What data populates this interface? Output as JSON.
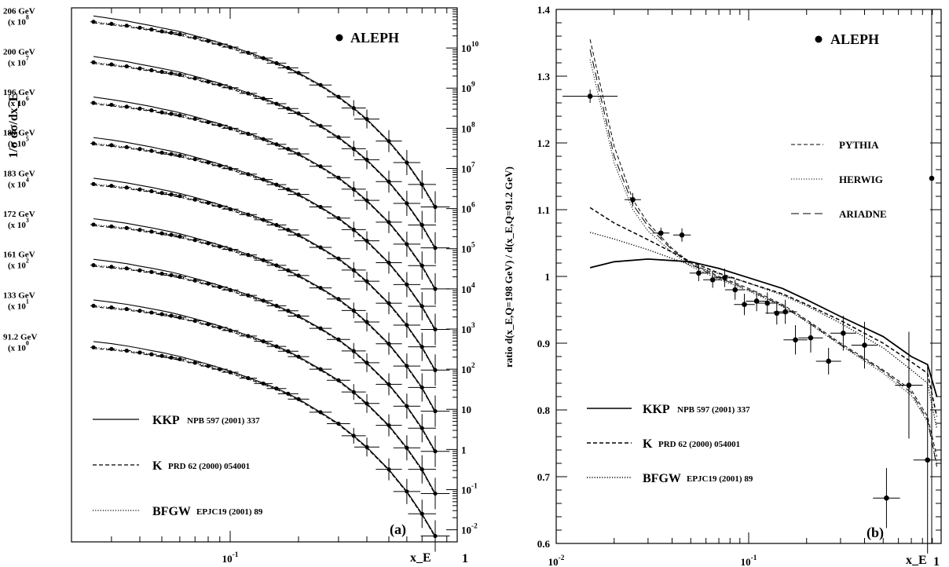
{
  "figure": {
    "panel_a": {
      "label": "(a)",
      "experiment": "ALEPH",
      "ylabel": "1/σ dσ/dx_E",
      "xlabel": "x_E",
      "x_ticks": [
        "10^-1",
        "1"
      ],
      "right_ticks": [
        "10^10",
        "10^9",
        "10^8",
        "10^7",
        "10^6",
        "10^5",
        "10^4",
        "10^3",
        "10^2",
        "10",
        "1",
        "10^-1",
        "10^-2"
      ],
      "energy_labels": [
        {
          "energy": "206 GeV",
          "scale": "(x 10^8)"
        },
        {
          "energy": "200 GeV",
          "scale": "(x 10^7)"
        },
        {
          "energy": "196 GeV",
          "scale": "(x 10^6)"
        },
        {
          "energy": "189 GeV",
          "scale": "(x 10^5)"
        },
        {
          "energy": "183 GeV",
          "scale": "(x 10^4)"
        },
        {
          "energy": "172 GeV",
          "scale": "(x 10^3)"
        },
        {
          "energy": "161 GeV",
          "scale": "(x 10^2)"
        },
        {
          "energy": "133 GeV",
          "scale": "(x 10^1)"
        },
        {
          "energy": "91.2 GeV",
          "scale": "(x 10^0)"
        }
      ],
      "legend": [
        {
          "name": "KKP",
          "ref": "NPB 597 (2001) 337",
          "style": "solid"
        },
        {
          "name": "K",
          "ref": "PRD 62 (2000) 054001",
          "style": "dashed"
        },
        {
          "name": "BFGW",
          "ref": "EPJC19 (2001) 89",
          "style": "dotted"
        }
      ]
    },
    "panel_b": {
      "label": "(b)",
      "experiment": "ALEPH",
      "ylabel": "ratio d(x_E,Q=198 GeV) / d(x_E,Q=91.2 GeV)",
      "xlabel": "x_E",
      "y_ticks": [
        "0.6",
        "0.7",
        "0.8",
        "0.9",
        "1",
        "1.1",
        "1.2",
        "1.3",
        "1.4"
      ],
      "x_ticks": [
        "10^-2",
        "10^-1",
        "1"
      ],
      "mc_legend": [
        {
          "name": "PYTHIA",
          "style": "dashed"
        },
        {
          "name": "HERWIG",
          "style": "dotted"
        },
        {
          "name": "ARIADNE",
          "style": "longdash"
        }
      ],
      "legend": [
        {
          "name": "KKP",
          "ref": "NPB 597 (2001) 337",
          "style": "solid"
        },
        {
          "name": "K",
          "ref": "PRD 62 (2000) 054001",
          "style": "dashed"
        },
        {
          "name": "BFGW",
          "ref": "EPJC19 (2001) 89",
          "style": "dotted"
        }
      ]
    }
  },
  "chart_data": [
    {
      "type": "scatter",
      "panel": "a",
      "xscale": "log",
      "yscale": "log",
      "xlim": [
        0.02,
        1.0
      ],
      "ylim": [
        0.005,
        100000000000.0
      ],
      "x": [
        0.025,
        0.03,
        0.035,
        0.04,
        0.045,
        0.05,
        0.055,
        0.06,
        0.07,
        0.08,
        0.09,
        0.1,
        0.12,
        0.14,
        0.16,
        0.18,
        0.2,
        0.25,
        0.3,
        0.35,
        0.4,
        0.5,
        0.6,
        0.7,
        0.8
      ],
      "series": [
        {
          "name": "206 GeV",
          "scale": 100000000.0,
          "values": [
            45000000000.0,
            40000000000.0,
            36000000000.0,
            32000000000.0,
            29000000000.0,
            26000000000.0,
            24000000000.0,
            22000000000.0,
            18000000000.0,
            15000000000.0,
            12500000000.0,
            10500000000.0,
            7600000000.0,
            5600000000.0,
            4200000000.0,
            3200000000.0,
            2400000000.0,
            1200000000.0,
            610000000.0,
            320000000.0,
            170000000.0,
            48000000.0,
            14000000.0,
            4000000.0,
            1100000.0
          ]
        },
        {
          "name": "200 GeV",
          "scale": 10000000.0,
          "values": [
            4400000000.0,
            3900000000.0,
            3500000000.0,
            3100000000.0,
            2800000000.0,
            2550000000.0,
            2350000000.0,
            2150000000.0,
            1750000000.0,
            1450000000.0,
            1220000000.0,
            1020000000.0,
            740000000.0,
            550000000.0,
            410000000.0,
            310000000.0,
            235000000.0,
            115000000.0,
            60000000.0,
            31000000.0,
            16500000.0,
            4700000.0,
            1350000.0,
            390000.0,
            105000.0
          ]
        },
        {
          "name": "196 GeV",
          "scale": 1000000.0,
          "values": [
            430000000.0,
            385000000.0,
            345000000.0,
            310000000.0,
            280000000.0,
            250000000.0,
            230000000.0,
            210000000.0,
            172000000.0,
            142000000.0,
            120000000.0,
            100000000.0,
            73000000.0,
            54000000.0,
            40000000.0,
            30500000.0,
            23000000.0,
            11300000.0,
            5900000.0,
            3050000.0,
            1600000.0,
            460000.0,
            130000.0,
            38000.0,
            10000.0
          ]
        },
        {
          "name": "189 GeV",
          "scale": 100000.0,
          "values": [
            42000000.0,
            38000000.0,
            34000000.0,
            30500000.0,
            27500000.0,
            24800000.0,
            22800000.0,
            20800000.0,
            17000000.0,
            14100000.0,
            11800000.0,
            9900000.0,
            7200000.0,
            5300000.0,
            3950000.0,
            3000000.0,
            2250000.0,
            1100000.0,
            580000.0,
            300000.0,
            158000.0,
            45000.0,
            12800.0,
            3700.0,
            980.0
          ]
        },
        {
          "name": "183 GeV",
          "scale": 10000.0,
          "values": [
            4100000.0,
            3700000.0,
            3350000.0,
            3000000.0,
            2720000.0,
            2450000.0,
            2250000.0,
            2050000.0,
            1680000.0,
            1390000.0,
            1160000.0,
            970000.0,
            710000.0,
            525000.0,
            390000.0,
            295000.0,
            220000.0,
            108000.0,
            57000.0,
            29500.0,
            15500.0,
            4400.0,
            1250.0,
            360.0,
            95
          ]
        },
        {
          "name": "172 GeV",
          "scale": 1000.0,
          "values": [
            400000.0,
            360000.0,
            330000.0,
            295000.0,
            268000.0,
            242000.0,
            222000.0,
            202000.0,
            165000.0,
            137000.0,
            114000.0,
            96000.0,
            70000.0,
            52000.0,
            38500.0,
            29000.0,
            21500.0,
            10600.0,
            5600.0,
            2900.0,
            1500.0,
            430.0,
            120.0,
            35,
            9
          ]
        },
        {
          "name": "161 GeV",
          "scale": 100.0,
          "values": [
            39000.0,
            35500.0,
            32500.0,
            29000.0,
            26500.0,
            24000.0,
            22000.0,
            20000.0,
            16200.0,
            13500.0,
            11200.0,
            9400.0,
            6900.0,
            5100.0,
            3800.0,
            2850.0,
            2100.0,
            1040.0,
            550.0,
            285.0,
            145.0,
            42,
            12,
            3.4,
            0.9
          ]
        },
        {
          "name": "133 GeV",
          "scale": 10.0,
          "values": [
            3800.0,
            3450.0,
            3150.0,
            2850.0,
            2580.0,
            2350.0,
            2150.0,
            1950.0,
            1600.0,
            1320.0,
            1100.0,
            920.0,
            670.0,
            495.0,
            370.0,
            280.0,
            205.0,
            100.0,
            53,
            27,
            14,
            4.0,
            1.1,
            0.32,
            0.08
          ]
        },
        {
          "name": "91.2 GeV",
          "scale": 1,
          "values": [
            350.0,
            320.0,
            290.0,
            260.0,
            235.0,
            215.0,
            195.0,
            178.0,
            145.0,
            120.0,
            100.0,
            84,
            60,
            44,
            33,
            24.5,
            18,
            8.5,
            4.4,
            2.2,
            1.15,
            0.32,
            0.09,
            0.025,
            0.007
          ]
        }
      ],
      "curves": [
        "KKP",
        "K",
        "BFGW"
      ]
    },
    {
      "type": "scatter",
      "panel": "b",
      "xscale": "log",
      "xlim": [
        0.01,
        1.0
      ],
      "ylim": [
        0.6,
        1.4
      ],
      "ylabel": "ratio d(x_E,Q=198 GeV) / d(x_E,Q=91.2 GeV)",
      "xlabel": "x_E",
      "points": {
        "x": [
          0.015,
          0.025,
          0.035,
          0.045,
          0.055,
          0.065,
          0.075,
          0.085,
          0.095,
          0.11,
          0.125,
          0.14,
          0.155,
          0.175,
          0.21,
          0.26,
          0.31,
          0.4,
          0.52,
          0.68,
          0.85
        ],
        "y": [
          1.27,
          1.115,
          1.065,
          1.062,
          1.005,
          0.995,
          0.998,
          0.98,
          0.958,
          0.963,
          0.96,
          0.945,
          0.947,
          0.905,
          0.908,
          0.873,
          0.915,
          0.897,
          0.668,
          0.837,
          0.725
        ],
        "yerr": [
          0.01,
          0.01,
          0.008,
          0.01,
          0.012,
          0.012,
          0.014,
          0.015,
          0.016,
          0.015,
          0.016,
          0.017,
          0.018,
          0.022,
          0.022,
          0.02,
          0.026,
          0.035,
          0.045,
          0.08,
          0.14
        ]
      },
      "series": [
        {
          "name": "KKP",
          "x": [
            0.015,
            0.02,
            0.03,
            0.05,
            0.07,
            0.1,
            0.15,
            0.2,
            0.3,
            0.5,
            0.7,
            0.85,
            0.95
          ],
          "y": [
            1.013,
            1.022,
            1.026,
            1.022,
            1.012,
            0.998,
            0.982,
            0.965,
            0.94,
            0.91,
            0.88,
            0.868,
            0.82
          ]
        },
        {
          "name": "K",
          "x": [
            0.015,
            0.02,
            0.03,
            0.05,
            0.07,
            0.1,
            0.15,
            0.2,
            0.3,
            0.5,
            0.7,
            0.85,
            0.95
          ],
          "y": [
            1.103,
            1.08,
            1.055,
            1.022,
            1.005,
            0.99,
            0.974,
            0.958,
            0.934,
            0.9,
            0.872,
            0.855,
            0.79
          ]
        },
        {
          "name": "BFGW",
          "x": [
            0.015,
            0.02,
            0.03,
            0.05,
            0.07,
            0.1,
            0.15,
            0.2,
            0.3,
            0.5,
            0.7,
            0.85,
            0.95
          ],
          "y": [
            1.066,
            1.056,
            1.04,
            1.017,
            1.004,
            0.99,
            0.972,
            0.956,
            0.93,
            0.893,
            0.86,
            0.84,
            0.772
          ]
        },
        {
          "name": "PYTHIA",
          "x": [
            0.015,
            0.02,
            0.025,
            0.03,
            0.04,
            0.05,
            0.07,
            0.1,
            0.15,
            0.2,
            0.3,
            0.5,
            0.7,
            0.85,
            0.95
          ],
          "y": [
            1.355,
            1.195,
            1.115,
            1.08,
            1.042,
            1.02,
            1.0,
            0.982,
            0.958,
            0.935,
            0.9,
            0.86,
            0.83,
            0.79,
            0.73
          ]
        },
        {
          "name": "HERWIG",
          "x": [
            0.015,
            0.02,
            0.025,
            0.03,
            0.04,
            0.05,
            0.07,
            0.1,
            0.15,
            0.2,
            0.3,
            0.5,
            0.7,
            0.85,
            0.95
          ],
          "y": [
            1.325,
            1.17,
            1.1,
            1.068,
            1.036,
            1.015,
            0.996,
            0.978,
            0.955,
            0.932,
            0.897,
            0.855,
            0.822,
            0.782,
            0.72
          ]
        },
        {
          "name": "ARIADNE",
          "x": [
            0.015,
            0.02,
            0.025,
            0.03,
            0.04,
            0.05,
            0.07,
            0.1,
            0.15,
            0.2,
            0.3,
            0.5,
            0.7,
            0.85,
            0.95
          ],
          "y": [
            1.34,
            1.18,
            1.108,
            1.075,
            1.04,
            1.018,
            0.998,
            0.98,
            0.956,
            0.933,
            0.898,
            0.858,
            0.826,
            0.785,
            0.715
          ]
        }
      ]
    }
  ]
}
